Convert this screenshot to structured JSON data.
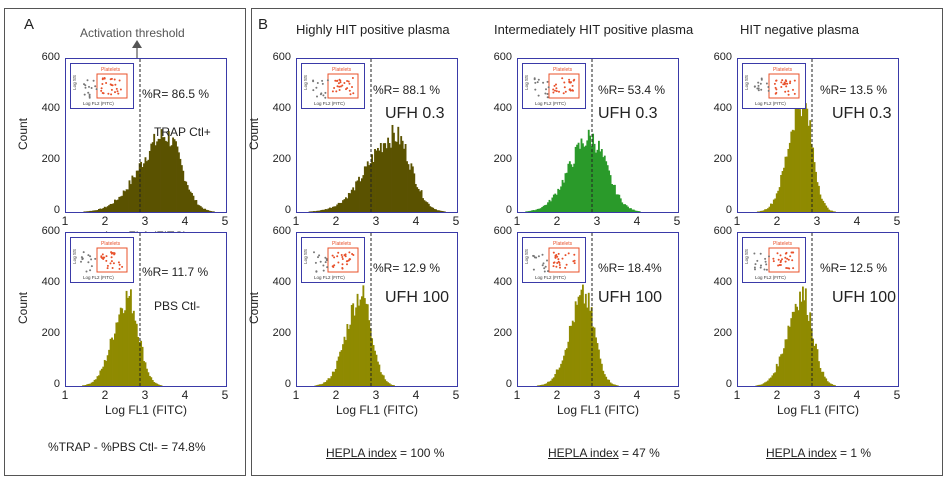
{
  "panel_a": {
    "letter": "A",
    "threshold_label": "Activation threshold",
    "footer": "%TRAP - %PBS Ctl- = 74.8%"
  },
  "panel_b": {
    "letter": "B",
    "columns": [
      {
        "title": "Highly HIT positive plasma",
        "footer_label": "HEPLA index",
        "footer_value": " = 100 %"
      },
      {
        "title": "Intermediately HIT positive plasma",
        "footer_label": "HEPLA index",
        "footer_value": " = 47 %"
      },
      {
        "title": "HIT negative plasma",
        "footer_label": "HEPLA index",
        "footer_value": " = 1 %"
      }
    ]
  },
  "axes": {
    "ylabel": "Count",
    "xlabel": "Log FL1 (FITC)",
    "y_ticks": [
      "0",
      "200",
      "400",
      "600"
    ],
    "x_ticks": [
      "1",
      "2",
      "3",
      "4",
      "5"
    ]
  },
  "inset": {
    "gate_label": "Platelets",
    "x_label": "Log FL2 (FITC)",
    "y_label": "Log SS"
  },
  "chart_data": [
    {
      "id": "A-top",
      "type": "histogram",
      "xlabel": "Log FL1 (FITC)",
      "ylabel": "Count",
      "xlim": [
        1,
        5
      ],
      "ylim": [
        0,
        600
      ],
      "peak_x": 3.5,
      "peak_count": 300,
      "spread": 0.48,
      "skew": 0.35,
      "fill": "#5a5200",
      "percent_label": "%R= 86.5 %",
      "condition": "TRAP Ctl+",
      "threshold_x": 2.85
    },
    {
      "id": "A-bottom",
      "type": "histogram",
      "xlabel": "Log FL1 (FITC)",
      "ylabel": "Count",
      "xlim": [
        1,
        5
      ],
      "ylim": [
        0,
        600
      ],
      "peak_x": 2.55,
      "peak_count": 350,
      "spread": 0.3,
      "skew": 0.2,
      "fill": "#8f8a00",
      "percent_label": "%R= 11.7 %",
      "condition": "PBS Ctl-",
      "threshold_x": 2.85
    },
    {
      "id": "B1-top",
      "type": "histogram",
      "xlabel": "",
      "ylabel": "Count",
      "xlim": [
        1,
        5
      ],
      "ylim": [
        0,
        600
      ],
      "peak_x": 3.45,
      "peak_count": 300,
      "spread": 0.5,
      "skew": 0.35,
      "fill": "#5a5200",
      "percent_label": "%R= 88.1 %",
      "condition": "UFH 0.3",
      "threshold_x": 2.85
    },
    {
      "id": "B1-bottom",
      "type": "histogram",
      "xlabel": "Log FL1 (FITC)",
      "ylabel": "Count",
      "xlim": [
        1,
        5
      ],
      "ylim": [
        0,
        600
      ],
      "peak_x": 2.6,
      "peak_count": 360,
      "spread": 0.3,
      "skew": 0.2,
      "fill": "#8f8a00",
      "percent_label": "%R= 12.9 %",
      "condition": "UFH 100",
      "threshold_x": 2.85
    },
    {
      "id": "B2-top",
      "type": "histogram",
      "xlabel": "",
      "ylabel": "",
      "xlim": [
        1,
        5
      ],
      "ylim": [
        0,
        600
      ],
      "peak_x": 2.8,
      "peak_count": 290,
      "spread": 0.45,
      "skew": 0.15,
      "fill": "#2a9a2a",
      "percent_label": "%R= 53.4 %",
      "condition": "UFH 0.3",
      "threshold_x": 2.85
    },
    {
      "id": "B2-bottom",
      "type": "histogram",
      "xlabel": "Log FL1 (FITC)",
      "ylabel": "",
      "xlim": [
        1,
        5
      ],
      "ylim": [
        0,
        600
      ],
      "peak_x": 2.65,
      "peak_count": 350,
      "spread": 0.3,
      "skew": 0.2,
      "fill": "#8f8a00",
      "percent_label": "%R= 18.4%",
      "condition": "UFH 100",
      "threshold_x": 2.85
    },
    {
      "id": "B3-top",
      "type": "histogram",
      "xlabel": "",
      "ylabel": "",
      "xlim": [
        1,
        5
      ],
      "ylim": [
        0,
        600
      ],
      "peak_x": 2.6,
      "peak_count": 440,
      "spread": 0.28,
      "skew": 0.2,
      "fill": "#8f8a00",
      "percent_label": "%R= 13.5 %",
      "condition": "UFH 0.3",
      "threshold_x": 2.85
    },
    {
      "id": "B3-bottom",
      "type": "histogram",
      "xlabel": "Log FL1 (FITC)",
      "ylabel": "",
      "xlim": [
        1,
        5
      ],
      "ylim": [
        0,
        600
      ],
      "peak_x": 2.6,
      "peak_count": 360,
      "spread": 0.3,
      "skew": 0.2,
      "fill": "#8f8a00",
      "percent_label": "%R= 12.5 %",
      "condition": "UFH 100",
      "threshold_x": 2.85
    }
  ]
}
